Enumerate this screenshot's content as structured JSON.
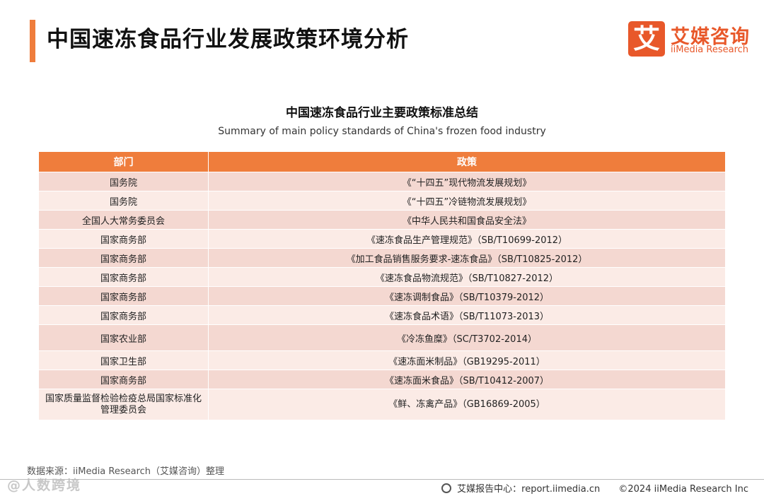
{
  "header": {
    "title": "中国速冻食品行业发展政策环境分析",
    "logo_mark": "艾",
    "logo_cn": "艾媒咨询",
    "logo_en": "iiMedia Research",
    "accent_color": "#ef7d3c"
  },
  "table": {
    "title": "中国速冻食品行业主要政策标准总结",
    "subtitle": "Summary of main policy standards of China's frozen food industry",
    "columns": [
      "部门",
      "政策"
    ],
    "rows": [
      [
        "国务院",
        "《“十四五”现代物流发展规划》"
      ],
      [
        "国务院",
        "《“十四五”冷链物流发展规划》"
      ],
      [
        "全国人大常务委员会",
        "《中华人民共和国食品安全法》"
      ],
      [
        "国家商务部",
        "《速冻食品生产管理规范》（SB/T10699-2012）"
      ],
      [
        "国家商务部",
        "《加工食品销售服务要求-速冻食品》（SB/T10825-2012）"
      ],
      [
        "国家商务部",
        "《速冻食品物流规范》（SB/T10827-2012）"
      ],
      [
        "国家商务部",
        "《速冻调制食品》（SB/T10379-2012）"
      ],
      [
        "国家商务部",
        "《速冻食品术语》（SB/T11073-2013）"
      ],
      [
        "国家农业部",
        "《冷冻鱼糜》（SC/T3702-2014）"
      ],
      [
        "国家卫生部",
        "《速冻面米制品》（GB19295-2011）"
      ],
      [
        "国家商务部",
        "《速冻面米食品》（SB/T10412-2007）"
      ],
      [
        "国家质量监督检验检疫总局国家标准化管理委员会",
        "《鲜、冻禽产品》（GB16869-2005）"
      ]
    ]
  },
  "footer": {
    "source": "数据来源：iiMedia Research（艾媒咨询）整理",
    "watermark": "@人数跨境",
    "report_center": "艾媒报告中心：report.iimedia.cn",
    "copyright": "©2024  iiMedia Research  Inc"
  }
}
